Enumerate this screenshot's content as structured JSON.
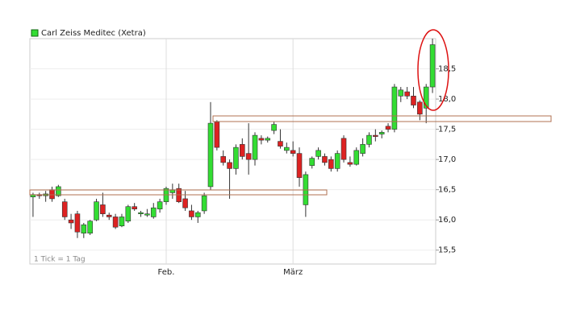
{
  "chart_data": {
    "type": "candlestick",
    "legend": "Carl Zeiss Meditec (Xetra)",
    "annotation": "1 Tick = 1 Tag",
    "categories": [
      null,
      null,
      null,
      null,
      null,
      null,
      null,
      null,
      null,
      null,
      null,
      null,
      null,
      null,
      null,
      null,
      null,
      null,
      null,
      null,
      null,
      "Feb.",
      null,
      null,
      null,
      null,
      null,
      null,
      null,
      null,
      null,
      null,
      null,
      null,
      null,
      null,
      null,
      null,
      null,
      null,
      null,
      "März",
      null,
      null,
      null,
      null,
      null,
      null,
      null,
      null,
      null,
      null,
      null,
      null,
      null,
      null,
      null,
      null,
      null,
      null,
      null,
      null,
      null,
      null
    ],
    "open": [
      16.38,
      16.42,
      16.4,
      16.5,
      16.4,
      16.3,
      16.0,
      16.1,
      15.78,
      15.78,
      16.0,
      16.25,
      16.08,
      16.05,
      15.9,
      15.98,
      16.22,
      16.1,
      16.08,
      16.05,
      16.18,
      16.3,
      16.45,
      16.52,
      16.35,
      16.15,
      16.05,
      16.15,
      16.55,
      17.62,
      17.05,
      16.95,
      16.85,
      17.25,
      17.1,
      17.0,
      17.35,
      17.32,
      17.48,
      17.3,
      17.15,
      17.15,
      17.1,
      16.25,
      16.9,
      17.05,
      17.05,
      17.0,
      16.85,
      17.35,
      16.95,
      16.92,
      17.1,
      17.25,
      17.4,
      17.42,
      17.55,
      17.5,
      18.05,
      18.12,
      18.05,
      17.95,
      17.85,
      18.2
    ],
    "high": [
      16.45,
      16.45,
      16.48,
      16.55,
      16.58,
      16.35,
      16.1,
      16.15,
      15.95,
      16.0,
      16.35,
      16.45,
      16.12,
      16.1,
      16.1,
      16.25,
      16.28,
      16.15,
      16.18,
      16.28,
      16.35,
      16.55,
      16.6,
      16.6,
      16.48,
      16.25,
      16.15,
      16.45,
      17.95,
      17.65,
      17.15,
      17.0,
      17.25,
      17.35,
      17.6,
      17.45,
      17.4,
      17.38,
      17.62,
      17.5,
      17.28,
      17.3,
      17.2,
      16.8,
      17.05,
      17.2,
      17.1,
      17.05,
      17.15,
      17.4,
      17.05,
      17.2,
      17.35,
      17.45,
      17.5,
      17.48,
      17.6,
      18.25,
      18.2,
      18.2,
      18.2,
      17.98,
      18.25,
      19.0
    ],
    "low": [
      16.05,
      16.35,
      16.3,
      16.3,
      16.38,
      16.0,
      15.85,
      15.7,
      15.7,
      15.75,
      15.98,
      16.05,
      16.0,
      15.85,
      15.88,
      15.95,
      16.15,
      16.05,
      16.05,
      16.02,
      16.12,
      16.25,
      16.35,
      16.28,
      16.15,
      16.0,
      15.95,
      16.1,
      16.5,
      17.15,
      16.9,
      16.35,
      16.75,
      17.0,
      16.75,
      16.9,
      17.25,
      17.28,
      17.42,
      17.18,
      17.1,
      17.05,
      16.55,
      16.05,
      16.85,
      17.0,
      16.9,
      16.8,
      16.8,
      16.95,
      16.88,
      16.9,
      17.05,
      17.2,
      17.3,
      17.35,
      17.45,
      17.45,
      17.95,
      18.0,
      17.85,
      17.65,
      17.6,
      18.1
    ],
    "close": [
      16.42,
      16.4,
      16.43,
      16.35,
      16.55,
      16.05,
      15.95,
      15.8,
      15.92,
      15.98,
      16.3,
      16.1,
      16.05,
      15.88,
      16.05,
      16.22,
      16.18,
      16.12,
      16.1,
      16.2,
      16.3,
      16.52,
      16.5,
      16.3,
      16.2,
      16.05,
      16.12,
      16.4,
      17.6,
      17.2,
      16.95,
      16.85,
      17.2,
      17.05,
      17.0,
      17.4,
      17.32,
      17.35,
      17.58,
      17.22,
      17.2,
      17.1,
      16.7,
      16.75,
      17.02,
      17.15,
      16.95,
      16.85,
      17.1,
      17.0,
      16.92,
      17.15,
      17.25,
      17.4,
      17.38,
      17.45,
      17.5,
      18.2,
      18.15,
      18.05,
      17.9,
      17.75,
      18.2,
      18.9
    ],
    "up_color": "#33dd33",
    "down_color": "#dd2222",
    "ylim": [
      15.27,
      19.0
    ],
    "yticks": [
      {
        "value": 15.5,
        "label": "15,5"
      },
      {
        "value": 16.0,
        "label": "16,0"
      },
      {
        "value": 16.5,
        "label": "16,5"
      },
      {
        "value": 17.0,
        "label": "17,0"
      },
      {
        "value": 17.5,
        "label": "17,5"
      },
      {
        "value": 18.0,
        "label": "18,0"
      },
      {
        "value": 18.5,
        "label": "18,5"
      }
    ],
    "grid": true
  }
}
